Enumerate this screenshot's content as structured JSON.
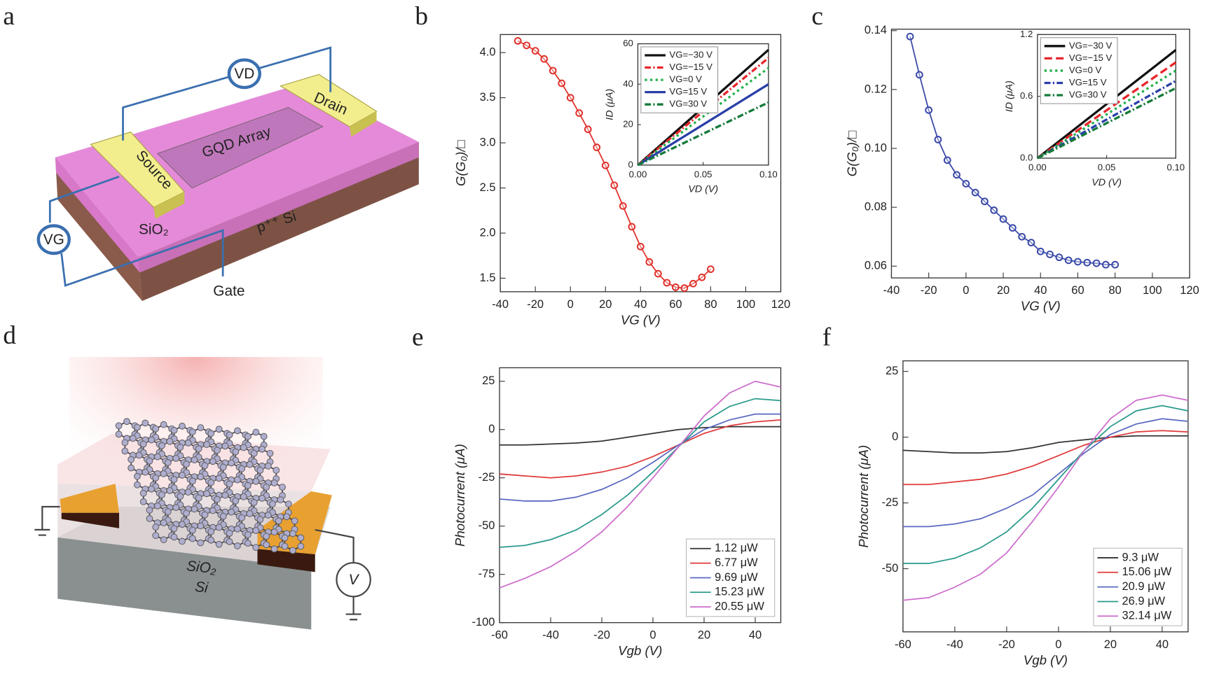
{
  "panel_labels": [
    "a",
    "b",
    "c",
    "d",
    "e",
    "f"
  ],
  "diagram_a": {
    "drain_voltage": "VD",
    "drain": "Drain",
    "array": "GQD Array",
    "source": "Source",
    "oxide": "SiO₂",
    "substrate": "p⁺⁺ Si",
    "gate_voltage": "VG",
    "gate": "Gate"
  },
  "diagram_d": {
    "oxide": "SiO₂",
    "substrate": "Si",
    "meter": "V"
  },
  "chart_data": [
    {
      "type": "line",
      "marker": "circle",
      "x_label": "VG (V)",
      "y_label": "G(G₀)/□",
      "color": "#e0302a",
      "x": [
        -30,
        -25,
        -20,
        -15,
        -10,
        -5,
        0,
        5,
        10,
        15,
        20,
        25,
        30,
        35,
        40,
        45,
        50,
        55,
        60,
        65,
        70,
        75,
        80
      ],
      "values": [
        4.13,
        4.08,
        4.02,
        3.93,
        3.8,
        3.66,
        3.5,
        3.33,
        3.15,
        2.95,
        2.75,
        2.53,
        2.3,
        2.07,
        1.85,
        1.68,
        1.55,
        1.45,
        1.4,
        1.39,
        1.44,
        1.51,
        1.6
      ],
      "xlim": [
        -40,
        120
      ],
      "xticks": [
        -40,
        -20,
        0,
        20,
        40,
        60,
        80,
        100,
        120
      ],
      "ylim": [
        1.35,
        4.2
      ],
      "yticks": [
        1.5,
        {
          "value": 2,
          "label": "2.0"
        },
        2.5,
        {
          "value": 3,
          "label": "3.0"
        },
        3.5,
        {
          "value": 4,
          "label": "4.0"
        }
      ]
    },
    {
      "type": "line",
      "x_label": "VD (V)",
      "y_label": "ID (μA)",
      "legend": "upper left",
      "x": [
        0,
        0.1
      ],
      "series": [
        {
          "name": "VG=−30 V",
          "color": "#111111",
          "dash": "solid",
          "values": [
            0,
            57
          ]
        },
        {
          "name": "VG=−15 V",
          "color": "#e8262a",
          "dash": "dashdot",
          "values": [
            0,
            53
          ]
        },
        {
          "name": "VG=0 V",
          "color": "#22b04a",
          "dash": "dotted",
          "values": [
            0,
            48
          ]
        },
        {
          "name": "VG=15 V",
          "color": "#2a3fa8",
          "dash": "solid",
          "values": [
            0,
            40
          ]
        },
        {
          "name": "VG=30 V",
          "color": "#157a3a",
          "dash": "dashdot",
          "values": [
            0,
            31
          ]
        }
      ],
      "xlim": [
        0,
        0.1
      ],
      "xticks": [
        {
          "value": 0,
          "label": "0.00"
        },
        0.05,
        {
          "value": 0.1,
          "label": "0.10"
        }
      ],
      "ylim": [
        0,
        60
      ],
      "yticks": [
        0,
        20,
        40,
        60
      ]
    },
    {
      "type": "line",
      "marker": "circle",
      "x_label": "VG (V)",
      "y_label": "G(G₀)/□",
      "color": "#3848a8",
      "x": [
        -30,
        -25,
        -20,
        -15,
        -10,
        -5,
        0,
        5,
        10,
        15,
        20,
        25,
        30,
        35,
        40,
        45,
        50,
        55,
        60,
        65,
        70,
        75,
        80
      ],
      "values": [
        0.138,
        0.125,
        0.113,
        0.103,
        0.096,
        0.091,
        0.088,
        0.085,
        0.082,
        0.079,
        0.076,
        0.073,
        0.07,
        0.068,
        0.065,
        0.064,
        0.063,
        0.062,
        0.0615,
        0.0612,
        0.061,
        0.0605,
        0.0605
      ],
      "xlim": [
        -40,
        120
      ],
      "xticks": [
        -40,
        -20,
        0,
        20,
        40,
        60,
        80,
        100,
        120
      ],
      "ylim": [
        0.056,
        0.1405
      ],
      "yticks": [
        0.06,
        0.08,
        {
          "value": 0.1,
          "label": "0.10"
        },
        0.12,
        0.14
      ]
    },
    {
      "type": "line",
      "x_label": "VD (V)",
      "y_label": "ID (μA)",
      "legend": "upper left",
      "x": [
        0,
        0.1
      ],
      "series": [
        {
          "name": "VG=−30 V",
          "color": "#111111",
          "dash": "solid",
          "values": [
            0,
            1.05
          ]
        },
        {
          "name": "VG=−15 V",
          "color": "#e8262a",
          "dash": "dashed",
          "values": [
            0,
            0.93
          ]
        },
        {
          "name": "VG=0 V",
          "color": "#22b04a",
          "dash": "dotted",
          "values": [
            0,
            0.85
          ]
        },
        {
          "name": "VG=15 V",
          "color": "#2a3fa8",
          "dash": "dashdot",
          "values": [
            0,
            0.75
          ]
        },
        {
          "name": "VG=30 V",
          "color": "#157a3a",
          "dash": "dashdot",
          "values": [
            0,
            0.68
          ]
        }
      ],
      "xlim": [
        0,
        0.1
      ],
      "xticks": [
        {
          "value": 0,
          "label": "0.00"
        },
        0.05,
        {
          "value": 0.1,
          "label": "0.10"
        }
      ],
      "ylim": [
        0,
        1.2
      ],
      "yticks": [
        {
          "value": 0,
          "label": "0.0"
        },
        0.6,
        1.2
      ]
    },
    {
      "type": "line",
      "x_label": "Vgb (V)",
      "y_label": "Photocurrent (μA)",
      "legend": "lower right",
      "x": [
        -60,
        -50,
        -40,
        -30,
        -20,
        -10,
        0,
        10,
        20,
        30,
        40,
        50
      ],
      "series": [
        {
          "name": "1.12 μW",
          "color": "#333333",
          "values": [
            -8,
            -8,
            -7.5,
            -7,
            -6,
            -4,
            -2,
            0,
            1,
            1.5,
            1.5,
            1.5
          ]
        },
        {
          "name": "6.77 μW",
          "color": "#e03a3a",
          "values": [
            -23,
            -24,
            -25,
            -24,
            -22,
            -19,
            -14,
            -8,
            -2,
            2,
            4,
            5
          ]
        },
        {
          "name": "9.69 μW",
          "color": "#5a68c0",
          "values": [
            -36,
            -37,
            -37,
            -35,
            -31,
            -25,
            -17,
            -8,
            0,
            5,
            8,
            8
          ]
        },
        {
          "name": "15.23 μW",
          "color": "#2a9a8c",
          "values": [
            -61,
            -60,
            -57,
            -52,
            -44,
            -34,
            -22,
            -9,
            4,
            12,
            16,
            15
          ]
        },
        {
          "name": "20.55 μW",
          "color": "#cc6ccc",
          "values": [
            -82,
            -77,
            -71,
            -63,
            -53,
            -40,
            -25,
            -9,
            7,
            19,
            25,
            22
          ]
        }
      ],
      "xlim": [
        -60,
        50
      ],
      "xticks": [
        -60,
        -40,
        -20,
        0,
        20,
        40
      ],
      "ylim": [
        -100,
        32
      ],
      "yticks": [
        -100,
        -75,
        -50,
        -25,
        0,
        25
      ]
    },
    {
      "type": "line",
      "x_label": "Vgb (V)",
      "y_label": "Photocurrent (μA)",
      "legend": "lower right",
      "x": [
        -60,
        -50,
        -40,
        -30,
        -20,
        -10,
        0,
        10,
        20,
        30,
        40,
        50
      ],
      "series": [
        {
          "name": "9.3 μW",
          "color": "#333333",
          "values": [
            -5,
            -5.5,
            -6,
            -6,
            -5.5,
            -4,
            -2,
            -1,
            0,
            0.5,
            0.5,
            0.5
          ]
        },
        {
          "name": "15.06 μW",
          "color": "#e03a3a",
          "values": [
            -18,
            -18,
            -17,
            -16,
            -14,
            -11,
            -7,
            -3,
            0,
            2,
            2.5,
            2
          ]
        },
        {
          "name": "20.9 μW",
          "color": "#5a68c0",
          "values": [
            -34,
            -34,
            -33,
            -31,
            -27,
            -22,
            -14,
            -6,
            1,
            5,
            7,
            6
          ]
        },
        {
          "name": "26.9 μW",
          "color": "#2a9a8c",
          "values": [
            -48,
            -48,
            -46,
            -42,
            -36,
            -27,
            -16,
            -5,
            4,
            10,
            12,
            10
          ]
        },
        {
          "name": "32.14 μW",
          "color": "#cc6ccc",
          "values": [
            -62,
            -61,
            -57,
            -52,
            -44,
            -32,
            -19,
            -5,
            7,
            14,
            16,
            14
          ]
        }
      ],
      "xlim": [
        -60,
        50
      ],
      "xticks": [
        -60,
        -40,
        -20,
        0,
        20,
        40
      ],
      "ylim": [
        -74,
        29
      ],
      "yticks": [
        -50,
        -25,
        0,
        25
      ]
    }
  ]
}
